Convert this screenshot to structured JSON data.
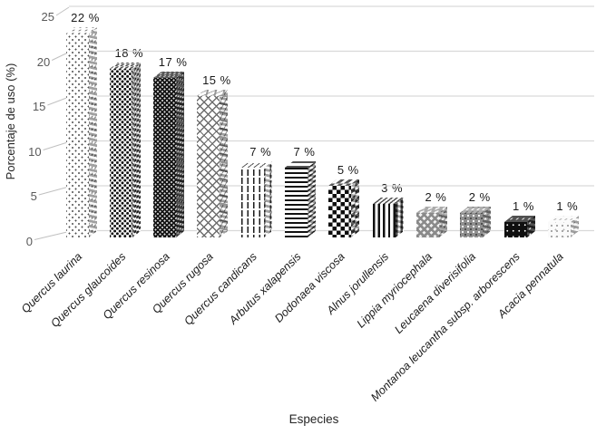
{
  "chart_data": {
    "type": "bar",
    "style": "3d-column-pattern-fill-monochrome",
    "title": "",
    "xlabel": "Especies",
    "ylabel": "Porcentaje de uso (%)",
    "ylim": [
      0,
      25
    ],
    "yticks": [
      0,
      5,
      10,
      15,
      20,
      25
    ],
    "grid": true,
    "legend": "none",
    "categories": [
      "Quercus laurina",
      "Quercus glaucoides",
      "Quercus resinosa",
      "Quercus rugosa",
      "Quercus candicans",
      "Arbutus xalapensis",
      "Dodonaea viscosa",
      "Alnus jorullensis",
      "Lippia myriocephala",
      "Leucaena diverisifolia",
      "Montanoa leucantha subsp. arborescens",
      "Acacia pennatula"
    ],
    "values": [
      22,
      18,
      17,
      15,
      7,
      7,
      5,
      3,
      2,
      2,
      1,
      1
    ],
    "bar_labels": [
      "22 %",
      "18 %",
      "17 %",
      "15 %",
      "7 %",
      "7 %",
      "5 %",
      "3 %",
      "2 %",
      "2 %",
      "1 %",
      "1 %"
    ],
    "patterns": [
      "sparse-dots",
      "dense-dashes",
      "dark-weave",
      "lattice",
      "dashed-vertical",
      "horizontal-stripes",
      "diamond-checker",
      "vertical-stripes",
      "basket-weave",
      "gray-white-dots",
      "black-white-dots",
      "light-speckle"
    ]
  },
  "colors": {
    "background": "#ffffff",
    "text": "#1a1a1a",
    "tick_text": "#595959",
    "gridline": "#d9d9d9",
    "connector": "#c0c0c0",
    "bar_ink": "#111111"
  }
}
